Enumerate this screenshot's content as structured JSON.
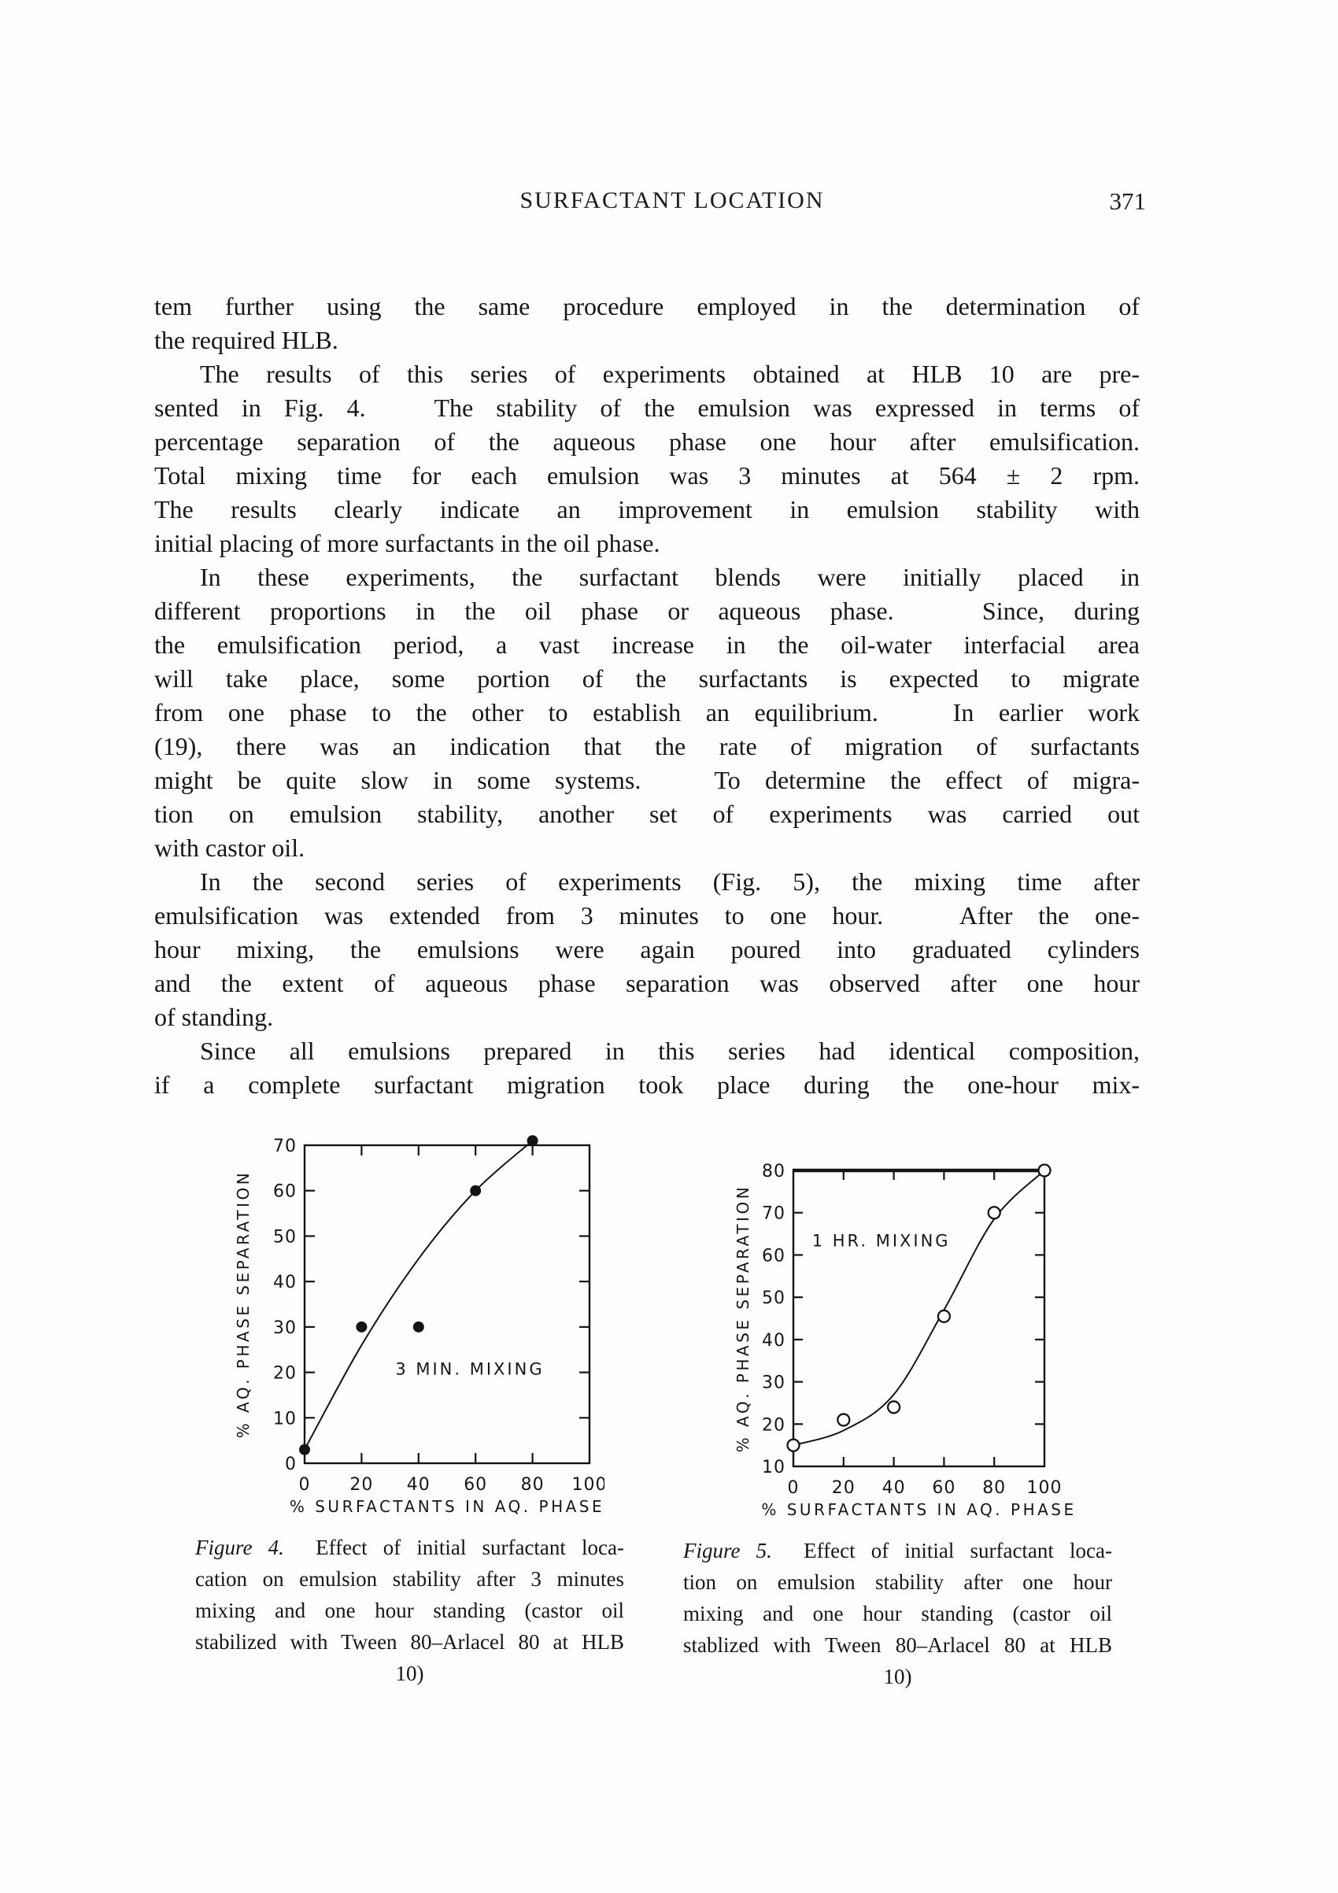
{
  "colors": {
    "ink": "#141414",
    "paper": "#fefefe"
  },
  "header": {
    "title": "SURFACTANT LOCATION",
    "page_number": "371"
  },
  "body": {
    "paragraphs": [
      {
        "indent": false,
        "lines": [
          "tem further using the same procedure employed in the determination of",
          "the required HLB."
        ]
      },
      {
        "indent": true,
        "lines": [
          "The results of this series of experiments obtained at HLB 10 are pre-",
          "sented in Fig. 4.   The stability of the emulsion was expressed in terms of",
          "percentage separation of the aqueous phase one hour after emulsification.",
          "Total mixing time for each emulsion was 3 minutes at 564 ± 2 rpm.",
          "The results clearly indicate an improvement in emulsion stability with",
          "initial placing of more surfactants in the oil phase."
        ]
      },
      {
        "indent": true,
        "lines": [
          "In these experiments, the surfactant blends were initially placed in",
          "different proportions in the oil phase or aqueous phase.   Since, during",
          "the emulsification period, a vast increase in the oil-water interfacial area",
          "will take place, some portion of the surfactants is expected to migrate",
          "from one phase to the other to establish an equilibrium.   In earlier work",
          "(19), there was an indication that the rate of migration of surfactants",
          "might be quite slow in some systems.   To determine the effect of migra-",
          "tion on emulsion stability, another set of experiments was carried out",
          "with castor oil."
        ]
      },
      {
        "indent": true,
        "lines": [
          "In the second series of experiments (Fig. 5), the mixing time after",
          "emulsification was extended from 3 minutes to one hour.   After the one-",
          "hour mixing, the emulsions were again poured into graduated cylinders",
          "and the extent of aqueous phase separation was observed after one hour",
          "of standing."
        ]
      },
      {
        "indent": true,
        "justify_last": true,
        "lines": [
          "Since all emulsions prepared in this series had identical composition,",
          "if a complete surfactant migration took place during the one-hour mix-"
        ]
      }
    ]
  },
  "figures": [
    {
      "figure_label": "Figure 4.",
      "caption_first_line": "Effect of initial surfactant loca-",
      "caption_lines": [
        "cation on emulsion stability after 3 minutes",
        "mixing and one hour standing (castor oil",
        "stabilized with Tween 80–Arlacel 80 at HLB",
        "10)"
      ]
    },
    {
      "figure_label": "Figure 5.",
      "caption_first_line": "Effect of initial surfactant loca-",
      "caption_lines": [
        "tion on emulsion stability after one hour",
        "mixing and one hour standing (castor oil",
        "stablized with Tween 80–Arlacel 80 at HLB",
        "10)"
      ]
    }
  ],
  "chart_data": [
    {
      "type": "scatter",
      "title": "",
      "xlabel": "% SURFACTANTS IN AQ. PHASE",
      "ylabel": "% AQ. PHASE SEPARATION",
      "xlim": [
        0,
        100
      ],
      "ylim": [
        0,
        70
      ],
      "xticks": [
        0,
        20,
        40,
        60,
        80,
        100
      ],
      "yticks": [
        0,
        10,
        20,
        30,
        40,
        50,
        60,
        70
      ],
      "grid": false,
      "marker": "filled-circle",
      "annotation": {
        "text": "3 MIN. MIXING",
        "x": 58,
        "y": 19.5
      },
      "points": [
        [
          0,
          3
        ],
        [
          20,
          30
        ],
        [
          40,
          30
        ],
        [
          60,
          60
        ],
        [
          80,
          71
        ]
      ],
      "curve": [
        [
          0,
          3
        ],
        [
          20,
          26
        ],
        [
          40,
          45
        ],
        [
          60,
          60
        ],
        [
          80,
          71
        ]
      ]
    },
    {
      "type": "scatter",
      "title": "",
      "xlabel": "% SURFACTANTS IN AQ. PHASE",
      "ylabel": "% AQ. PHASE SEPARATION",
      "xlim": [
        0,
        100
      ],
      "ylim": [
        10,
        80
      ],
      "xticks": [
        0,
        20,
        40,
        60,
        80,
        100
      ],
      "yticks": [
        10,
        20,
        30,
        40,
        50,
        60,
        70,
        80
      ],
      "grid": false,
      "marker": "open-circle",
      "annotation": {
        "text": "1 HR. MIXING",
        "x": 35,
        "y": 62
      },
      "points": [
        [
          0,
          15
        ],
        [
          20,
          21
        ],
        [
          40,
          24
        ],
        [
          60,
          45.5
        ],
        [
          80,
          70
        ],
        [
          100,
          80
        ]
      ],
      "curve": [
        [
          0,
          15
        ],
        [
          20,
          18.5
        ],
        [
          40,
          27
        ],
        [
          60,
          47
        ],
        [
          80,
          68.5
        ],
        [
          100,
          80
        ]
      ]
    }
  ]
}
